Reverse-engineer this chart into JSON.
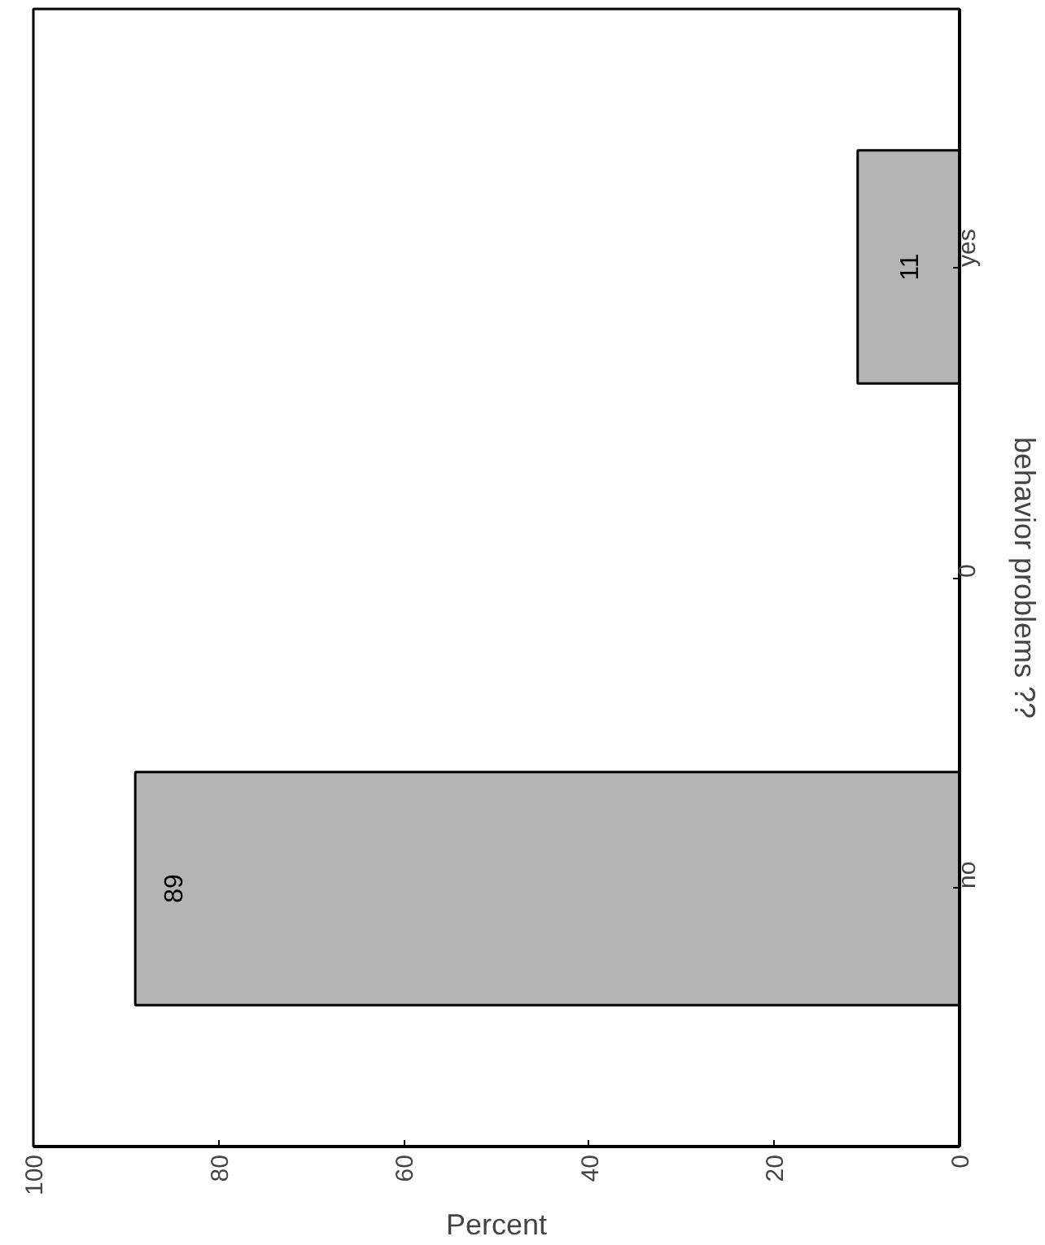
{
  "chart_data": {
    "type": "bar",
    "orientation": "horizontal",
    "xlabel": "Percent",
    "ylabel": "behavior problems ??",
    "categories": [
      "yes",
      "0",
      "no"
    ],
    "values": [
      11,
      0,
      89
    ],
    "color": "#b4b4b4",
    "value_labels": [
      "11",
      null,
      "89"
    ],
    "xlim": [
      100,
      0
    ],
    "xticks": [
      0,
      20,
      40,
      60,
      80,
      100
    ],
    "grid": false
  }
}
